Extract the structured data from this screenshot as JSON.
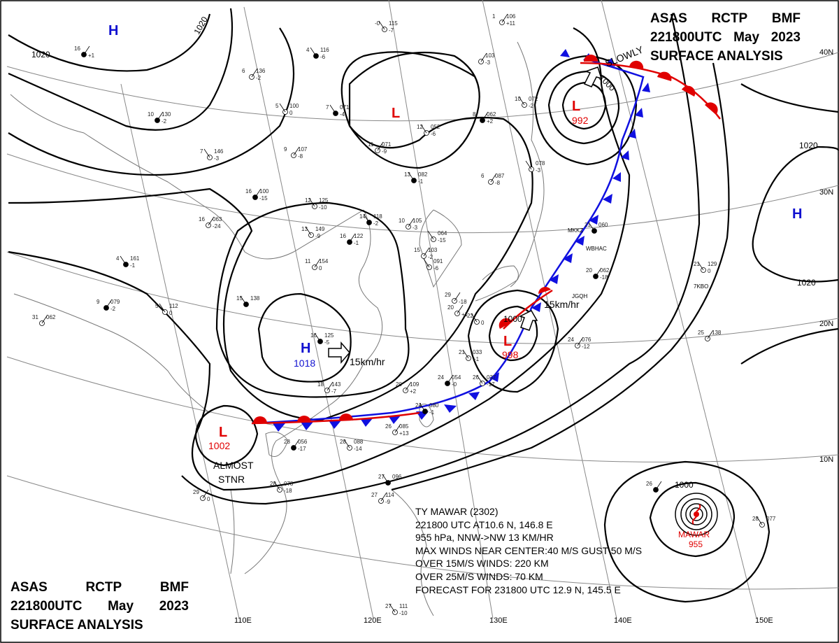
{
  "header_top": {
    "line1": [
      "ASAS",
      "RCTP",
      "BMF"
    ],
    "line2": [
      "221800UTC",
      "May",
      "2023"
    ],
    "line3": "SURFACE ANALYSIS"
  },
  "header_bottom": {
    "line1": [
      "ASAS",
      "RCTP",
      "BMF"
    ],
    "line2": [
      "221800UTC",
      "May",
      "2023"
    ],
    "line3": "SURFACE ANALYSIS"
  },
  "colors": {
    "warm_front": "#e00000",
    "cold_front": "#1010e0",
    "high": "#1010d0",
    "low": "#e00000",
    "isobar": "#000000",
    "coast": "#777777"
  },
  "longitude_labels": [
    "110E",
    "120E",
    "130E",
    "140E",
    "150E"
  ],
  "latitude_labels": [
    "40N",
    "30N",
    "20N",
    "10N"
  ],
  "isobar_labels": [
    "1020",
    "1020",
    "1000",
    "1000",
    "1020",
    "1020",
    "1000"
  ],
  "pressure_centers": [
    {
      "type": "H",
      "value": ""
    },
    {
      "type": "L",
      "value": ""
    },
    {
      "type": "L",
      "value": "992"
    },
    {
      "type": "H",
      "value": "1018"
    },
    {
      "type": "L",
      "value": "998"
    },
    {
      "type": "L",
      "value": "1002"
    },
    {
      "type": "H",
      "value": ""
    }
  ],
  "motion_labels": [
    "SLOWLY",
    "15km/hr",
    "15km/hr",
    "ALMOST",
    "STNR"
  ],
  "typhoon": {
    "name": "MAWAR",
    "pressure": "955"
  },
  "typhoon_info": [
    "TY MAWAR (2302)",
    "221800 UTC AT10.6 N, 146.8 E",
    "955 hPa, NNW->NW 13 KM/HR",
    "MAX WINDS NEAR CENTER:40 M/S GUST 50 M/S",
    "OVER 15M/S WINDS: 220 KM",
    "OVER 25M/S WINDS: 70 KM",
    "FORECAST FOR 231800 UTC 12.9 N, 145.5 E"
  ],
  "stations": [
    {
      "t": "16",
      "p": "",
      "c": "+1"
    },
    {
      "t": "-0",
      "p": "115",
      "c": "-7"
    },
    {
      "t": "1",
      "p": "106",
      "c": "+11"
    },
    {
      "t": "4",
      "p": "116",
      "c": "-6"
    },
    {
      "t": "6",
      "p": "136",
      "c": "-2"
    },
    {
      "t": "5",
      "p": "100",
      "c": "0"
    },
    {
      "t": "10",
      "p": "130",
      "c": "-2"
    },
    {
      "t": "7",
      "p": "146",
      "c": "-3"
    },
    {
      "t": "9",
      "p": "107",
      "c": "-8"
    },
    {
      "t": "7",
      "p": "071",
      "c": "-4"
    },
    {
      "t": "11",
      "p": "071",
      "c": "-9"
    },
    {
      "t": "12",
      "p": "052",
      "c": "-6"
    },
    {
      "t": "8",
      "p": "062",
      "c": "+2"
    },
    {
      "t": "10",
      "p": "072",
      "c": "-2"
    },
    {
      "t": "",
      "p": "103",
      "c": "-3"
    },
    {
      "t": "13",
      "p": "082",
      "c": "-1"
    },
    {
      "t": "6",
      "p": "087",
      "c": "-8"
    },
    {
      "t": "",
      "p": "078",
      "c": "-3"
    },
    {
      "t": "16",
      "p": "100",
      "c": "-15"
    },
    {
      "t": "12",
      "p": "125",
      "c": "-10"
    },
    {
      "t": "16",
      "p": "063",
      "c": "-24"
    },
    {
      "t": "14",
      "p": "118",
      "c": "-2"
    },
    {
      "t": "10",
      "p": "105",
      "c": "-3"
    },
    {
      "t": "13",
      "p": "149",
      "c": "-9"
    },
    {
      "t": "16",
      "p": "122",
      "c": "-1"
    },
    {
      "t": "",
      "p": "064",
      "c": "-15"
    },
    {
      "t": "15",
      "p": "103",
      "c": "-2"
    },
    {
      "t": "4",
      "p": "161",
      "c": "-1"
    },
    {
      "t": "11",
      "p": "154",
      "c": "0"
    },
    {
      "t": "",
      "p": "091",
      "c": "-6"
    },
    {
      "t": "9",
      "p": "079",
      "c": "-2"
    },
    {
      "t": "5",
      "p": "112",
      "c": "0"
    },
    {
      "t": "31",
      "p": "062",
      "c": ""
    },
    {
      "t": "15",
      "p": "138",
      "c": ""
    },
    {
      "t": "20",
      "p": "",
      "c": "+1"
    },
    {
      "t": "22",
      "p": "",
      "c": "0"
    },
    {
      "t": "20",
      "p": "062",
      "c": "-18"
    },
    {
      "t": "21",
      "p": "129",
      "c": "0"
    },
    {
      "t": "25",
      "p": "138",
      "c": ""
    },
    {
      "t": "16",
      "p": "125",
      "c": "-5"
    },
    {
      "t": "18",
      "p": "143",
      "c": "-7"
    },
    {
      "t": "21",
      "p": "033",
      "c": "+1"
    },
    {
      "t": "24",
      "p": "054",
      "c": "-0"
    },
    {
      "t": "26",
      "p": "037",
      "c": "-17"
    },
    {
      "t": "20",
      "p": "109",
      "c": "+2"
    },
    {
      "t": "24",
      "p": "080",
      "c": "-1"
    },
    {
      "t": "26",
      "p": "085",
      "c": "+13"
    },
    {
      "t": "28",
      "p": "088",
      "c": "-14"
    },
    {
      "t": "28",
      "p": "056",
      "c": "-17"
    },
    {
      "t": "28",
      "p": "078",
      "c": "-18"
    },
    {
      "t": "29",
      "p": "",
      "c": "0"
    },
    {
      "t": "27",
      "p": "096",
      "c": ""
    },
    {
      "t": "27",
      "p": "114",
      "c": "-9"
    },
    {
      "t": "27",
      "p": "111",
      "c": "-10"
    },
    {
      "t": "26",
      "p": "",
      "c": ""
    },
    {
      "t": "28",
      "p": "077",
      "c": ""
    },
    {
      "t": "24",
      "p": "076",
      "c": "-12"
    },
    {
      "t": "21",
      "p": "060",
      "c": ""
    },
    {
      "t": "29",
      "p": "",
      "c": "-18"
    }
  ],
  "station_codes": [
    "MKKZ",
    "WBHAC",
    "JGQH",
    "7KBO"
  ]
}
